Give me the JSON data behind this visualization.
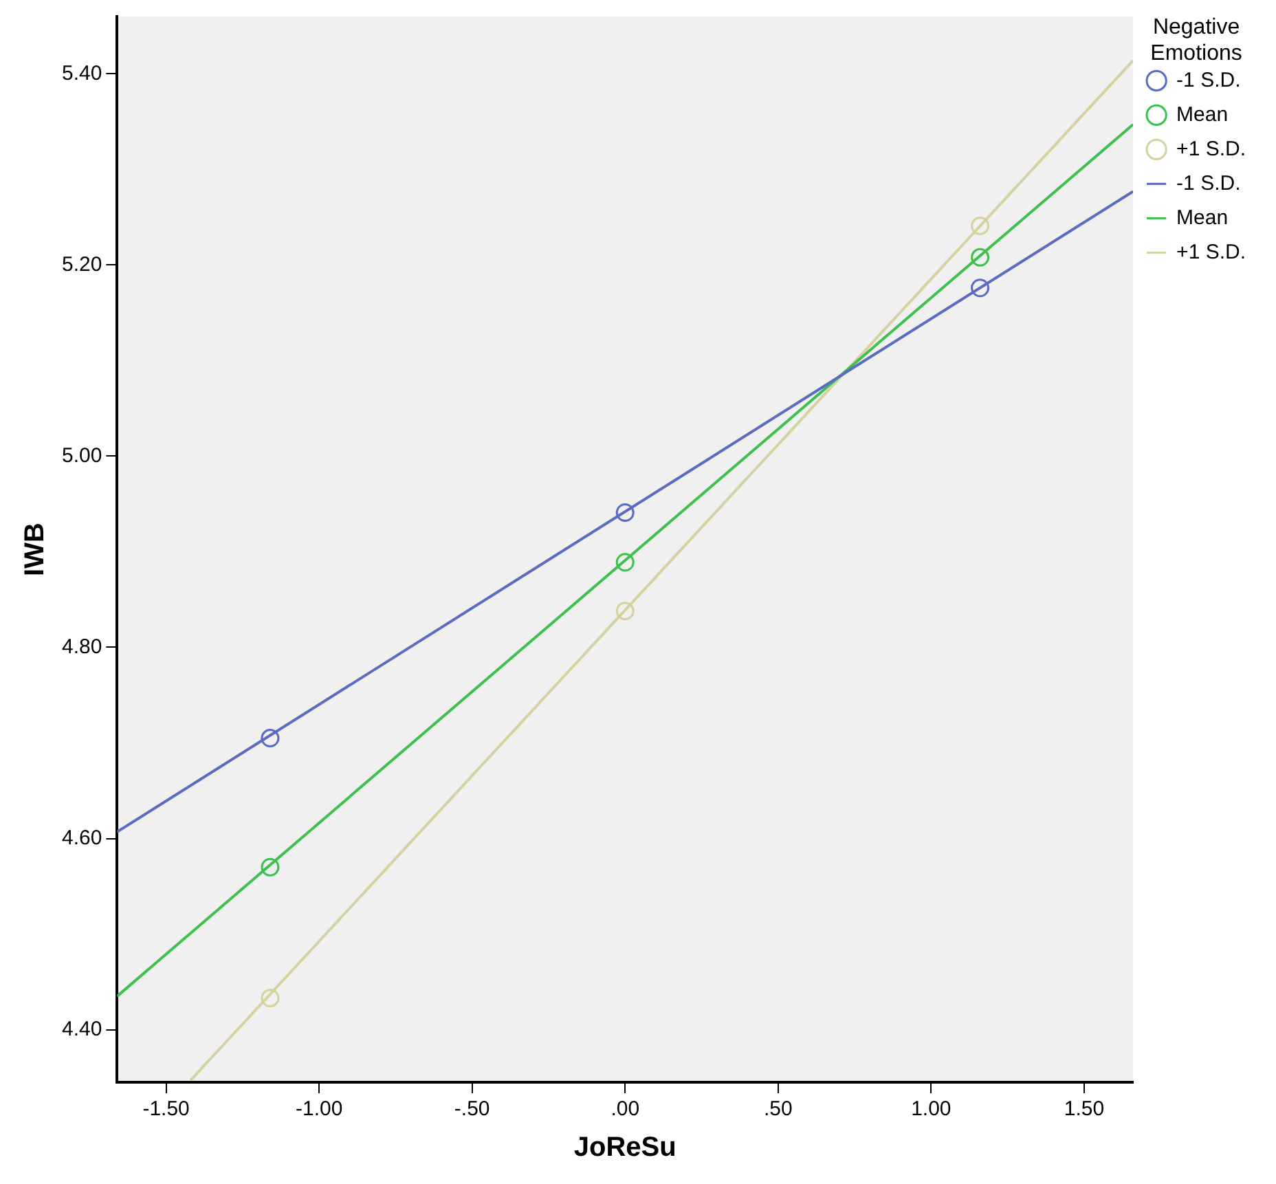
{
  "chart_data": {
    "type": "scatter",
    "xlabel": "JoReSu",
    "ylabel": "IWB",
    "legend_title": "Negative Emotions",
    "legend": "top right",
    "grid": false,
    "xlim": [
      -1.66,
      1.66
    ],
    "ylim": [
      4.345,
      5.46
    ],
    "xticks": [
      {
        "value": -1.5,
        "label": "-1.50"
      },
      {
        "value": -1,
        "label": "-1.00"
      },
      {
        "value": -0.5,
        "label": "-.50"
      },
      {
        "value": 0,
        "label": ".00"
      },
      {
        "value": 0.5,
        "label": ".50"
      },
      {
        "value": 1,
        "label": "1.00"
      },
      {
        "value": 1.5,
        "label": "1.50"
      }
    ],
    "yticks": [
      {
        "value": 4.4,
        "label": "4.40"
      },
      {
        "value": 4.6,
        "label": "4.60"
      },
      {
        "value": 4.8,
        "label": "4.80"
      },
      {
        "value": 5,
        "label": "5.00"
      },
      {
        "value": 5.2,
        "label": "5.20"
      },
      {
        "value": 5.4,
        "label": "5.40"
      }
    ],
    "series": [
      {
        "name": "-1 S.D.",
        "type": "scatter",
        "marker": "circle",
        "color": "#5b6bc0",
        "x": [
          -1.16,
          0,
          1.16
        ],
        "values": [
          4.705,
          4.941,
          5.176
        ]
      },
      {
        "name": "Mean",
        "type": "scatter",
        "marker": "circle",
        "color": "#3ec04f",
        "x": [
          -1.16,
          0,
          1.16
        ],
        "values": [
          4.57,
          4.889,
          5.208
        ]
      },
      {
        "name": "+1 S.D.",
        "type": "scatter",
        "marker": "circle",
        "color": "#d6d2a0",
        "x": [
          -1.16,
          0,
          1.16
        ],
        "values": [
          4.433,
          4.838,
          5.241
        ]
      },
      {
        "name": "-1 S.D.",
        "type": "line",
        "marker": "none",
        "color": "#5b6bc0",
        "x": [
          -1.66,
          1.66
        ],
        "values": [
          4.607,
          5.277
        ]
      },
      {
        "name": "Mean",
        "type": "line",
        "marker": "none",
        "color": "#3ec04f",
        "x": [
          -1.66,
          1.66
        ],
        "values": [
          4.435,
          5.347
        ]
      },
      {
        "name": "+1 S.D.",
        "type": "line",
        "marker": "none",
        "color": "#d6d2a0",
        "x": [
          -1.42,
          1.66
        ],
        "values": [
          4.347,
          5.414
        ]
      }
    ]
  }
}
